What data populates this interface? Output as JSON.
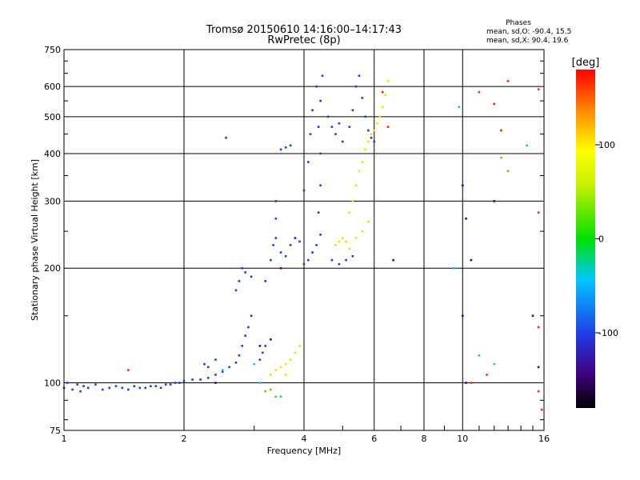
{
  "chart_data": {
    "type": "scatter",
    "title": "Tromsø 20150610 14:16:00–14:17:43",
    "subtitle": "RwPretec (8p)",
    "xlabel": "Frequency [MHz]",
    "ylabel": "Stationary phase Virtual Height [km]",
    "x_scale": "log",
    "y_scale": "log",
    "xlim": [
      1,
      16
    ],
    "ylim": [
      75,
      750
    ],
    "grid": true,
    "x_ticks": [
      1,
      2,
      4,
      6,
      8,
      10,
      16
    ],
    "x_tick_labels": [
      "1",
      "2",
      "4",
      "6",
      "8",
      "10",
      "16"
    ],
    "y_ticks": [
      75,
      100,
      200,
      300,
      400,
      500,
      600,
      750
    ],
    "y_tick_labels": [
      "75",
      "100",
      "200",
      "300",
      "400",
      "500",
      "600",
      "750"
    ],
    "stats_title": "Phases",
    "stats_lines": [
      "mean, sd,O: -90.4, 15.5",
      "mean, sd,X:  90.4, 19.6"
    ],
    "colorbar": {
      "label": "[deg]",
      "range": [
        -180,
        180
      ],
      "ticks": [
        100,
        0,
        -100
      ],
      "tick_labels": [
        "100",
        "0",
        "-100"
      ]
    },
    "series": [
      {
        "phase_deg": -95,
        "color": "#1f3de8",
        "points": [
          [
            1.0,
            97
          ],
          [
            1.02,
            100
          ],
          [
            1.05,
            96
          ],
          [
            1.08,
            99
          ],
          [
            1.1,
            95
          ],
          [
            1.12,
            98
          ],
          [
            1.15,
            97
          ],
          [
            1.2,
            99
          ],
          [
            1.25,
            96
          ],
          [
            1.3,
            97
          ],
          [
            1.35,
            98
          ],
          [
            1.4,
            97
          ],
          [
            1.45,
            96
          ],
          [
            1.5,
            98
          ],
          [
            1.55,
            97
          ],
          [
            1.6,
            97
          ],
          [
            1.65,
            98
          ],
          [
            1.7,
            98
          ],
          [
            1.75,
            97
          ],
          [
            1.8,
            99
          ],
          [
            1.85,
            99
          ],
          [
            1.9,
            100
          ],
          [
            1.95,
            100
          ],
          [
            2.0,
            101
          ],
          [
            2.1,
            102
          ],
          [
            2.2,
            102
          ],
          [
            2.3,
            103
          ],
          [
            2.4,
            105
          ],
          [
            2.5,
            107
          ],
          [
            2.6,
            110
          ],
          [
            2.7,
            113
          ],
          [
            2.75,
            118
          ],
          [
            2.8,
            125
          ],
          [
            2.85,
            133
          ],
          [
            2.9,
            140
          ],
          [
            2.95,
            150
          ],
          [
            2.7,
            175
          ],
          [
            2.75,
            185
          ],
          [
            2.8,
            200
          ],
          [
            2.85,
            195
          ],
          [
            2.95,
            190
          ],
          [
            3.1,
            115
          ],
          [
            3.15,
            120
          ],
          [
            3.2,
            125
          ],
          [
            3.3,
            210
          ],
          [
            3.35,
            230
          ],
          [
            3.4,
            270
          ],
          [
            3.4,
            240
          ],
          [
            3.5,
            220
          ],
          [
            3.6,
            215
          ],
          [
            3.7,
            230
          ],
          [
            3.8,
            240
          ],
          [
            3.9,
            235
          ],
          [
            3.5,
            410
          ],
          [
            3.6,
            415
          ],
          [
            3.7,
            420
          ],
          [
            4.0,
            320
          ],
          [
            4.1,
            380
          ],
          [
            4.15,
            450
          ],
          [
            4.2,
            520
          ],
          [
            4.3,
            600
          ],
          [
            4.0,
            205
          ],
          [
            4.1,
            210
          ],
          [
            4.2,
            220
          ],
          [
            4.3,
            230
          ],
          [
            4.4,
            245
          ],
          [
            4.35,
            280
          ],
          [
            4.4,
            330
          ],
          [
            4.4,
            400
          ],
          [
            4.35,
            470
          ],
          [
            4.4,
            550
          ],
          [
            4.45,
            640
          ],
          [
            4.6,
            500
          ],
          [
            4.7,
            470
          ],
          [
            4.8,
            450
          ],
          [
            4.9,
            480
          ],
          [
            5.0,
            430
          ],
          [
            5.2,
            470
          ],
          [
            5.3,
            520
          ],
          [
            5.4,
            600
          ],
          [
            5.5,
            640
          ],
          [
            5.6,
            560
          ],
          [
            5.7,
            500
          ],
          [
            5.8,
            460
          ],
          [
            5.9,
            440
          ],
          [
            6.0,
            430
          ],
          [
            4.7,
            210
          ],
          [
            4.9,
            205
          ],
          [
            5.1,
            210
          ],
          [
            5.3,
            215
          ],
          [
            2.55,
            440
          ],
          [
            3.8,
            240
          ],
          [
            3.4,
            300
          ],
          [
            3.2,
            185
          ],
          [
            2.4,
            115
          ],
          [
            2.3,
            110
          ],
          [
            2.25,
            112
          ]
        ]
      },
      {
        "phase_deg": 95,
        "color": "#e8e800",
        "points": [
          [
            5.2,
            280
          ],
          [
            5.3,
            300
          ],
          [
            5.4,
            330
          ],
          [
            5.5,
            360
          ],
          [
            5.6,
            380
          ],
          [
            5.7,
            410
          ],
          [
            5.8,
            430
          ],
          [
            5.9,
            450
          ],
          [
            6.0,
            460
          ],
          [
            6.1,
            480
          ],
          [
            6.2,
            500
          ],
          [
            6.3,
            530
          ],
          [
            6.4,
            570
          ],
          [
            6.5,
            620
          ],
          [
            4.8,
            230
          ],
          [
            4.9,
            235
          ],
          [
            5.0,
            240
          ],
          [
            5.1,
            235
          ],
          [
            5.2,
            225
          ],
          [
            5.4,
            240
          ],
          [
            5.6,
            250
          ],
          [
            5.8,
            265
          ],
          [
            3.4,
            108
          ],
          [
            3.5,
            110
          ],
          [
            3.6,
            112
          ],
          [
            3.7,
            115
          ],
          [
            3.8,
            120
          ],
          [
            3.9,
            125
          ],
          [
            3.3,
            105
          ],
          [
            3.6,
            105
          ]
        ]
      },
      {
        "phase_deg": 160,
        "color": "#ff2a00",
        "points": [
          [
            1.45,
            108
          ],
          [
            6.3,
            580
          ],
          [
            6.5,
            470
          ],
          [
            11.0,
            580
          ],
          [
            12.0,
            540
          ],
          [
            12.5,
            460
          ],
          [
            13.0,
            620
          ],
          [
            15.5,
            590
          ],
          [
            15.5,
            280
          ],
          [
            15.5,
            140
          ],
          [
            10.5,
            100
          ],
          [
            11.5,
            105
          ],
          [
            15.5,
            95
          ],
          [
            15.8,
            85
          ]
        ]
      },
      {
        "phase_deg": -40,
        "color": "#00c8ff",
        "points": [
          [
            9.8,
            530
          ],
          [
            9.5,
            200
          ],
          [
            11.0,
            118
          ],
          [
            12.0,
            112
          ],
          [
            14.5,
            420
          ],
          [
            3.0,
            112
          ],
          [
            3.1,
            100
          ],
          [
            3.5,
            92
          ],
          [
            2.5,
            108
          ]
        ]
      },
      {
        "phase_deg": 40,
        "color": "#60d800",
        "points": [
          [
            3.2,
            95
          ],
          [
            3.3,
            96
          ],
          [
            3.4,
            92
          ],
          [
            12.5,
            390
          ],
          [
            13.0,
            360
          ]
        ]
      },
      {
        "phase_deg": -140,
        "color": "#4a0090",
        "points": [
          [
            3.1,
            125
          ],
          [
            3.3,
            130
          ],
          [
            2.4,
            100
          ],
          [
            3.5,
            200
          ],
          [
            6.7,
            210
          ],
          [
            10.0,
            330
          ],
          [
            10.2,
            270
          ],
          [
            10.5,
            210
          ],
          [
            10.0,
            150
          ],
          [
            10.2,
            100
          ],
          [
            12.0,
            300
          ],
          [
            15.0,
            150
          ],
          [
            15.5,
            110
          ]
        ]
      }
    ]
  }
}
